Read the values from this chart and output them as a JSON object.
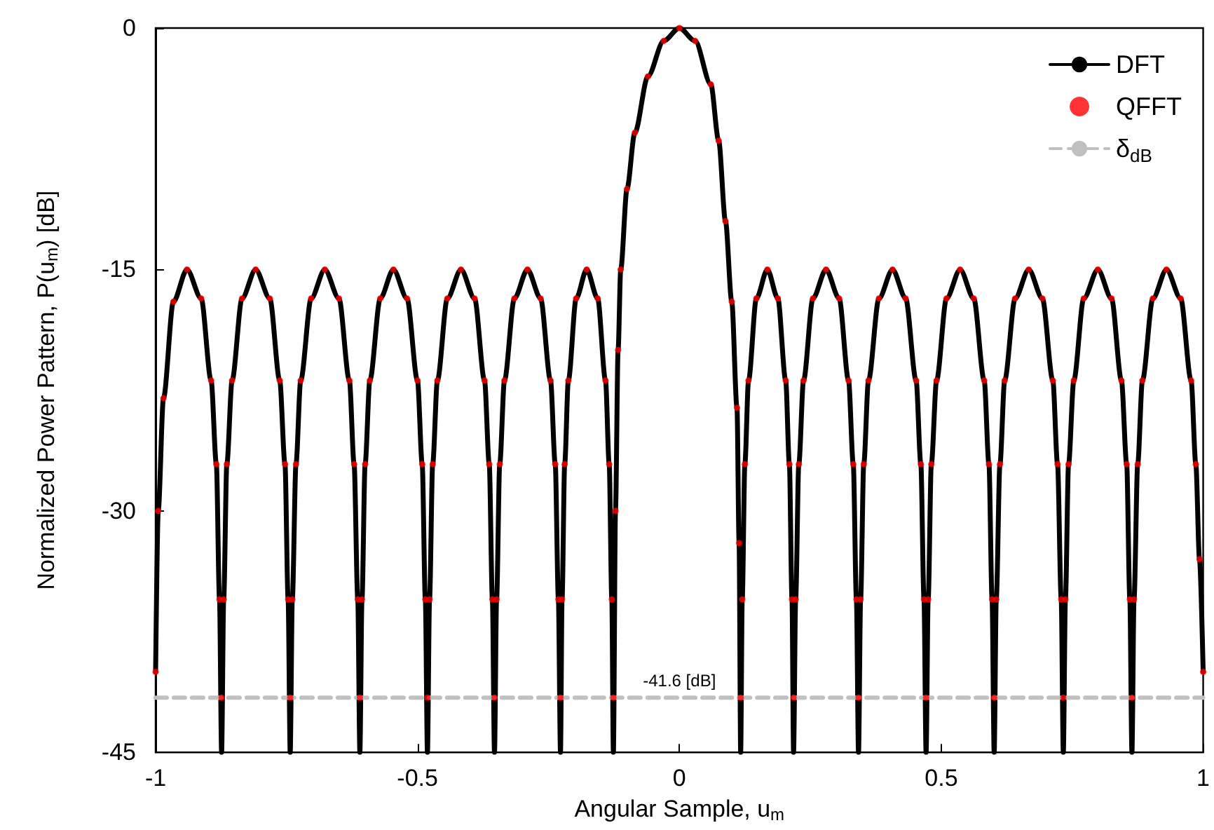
{
  "chart_data": {
    "type": "line",
    "xlabel": "Angular Sample, u$_{m}$",
    "ylabel": "Normalized Power Pattern, P(u$_{m}$) [dB]",
    "xlim": [
      -1,
      1
    ],
    "xticks": [
      -1,
      -0.5,
      0,
      0.5,
      1
    ],
    "ylim": [
      -45,
      0
    ],
    "yticks": [
      -45,
      -30,
      -15,
      0
    ],
    "grid": false,
    "legend": "top right",
    "annotations": [
      {
        "text": "-41.6 [dB]",
        "x": 0,
        "y": -41.6
      }
    ],
    "series": [
      {
        "name": "DFT",
        "color": "#000000",
        "marker": "none",
        "line_style": "solid",
        "x": [
          -1,
          -0.995,
          -0.985,
          -0.966,
          -0.94,
          -0.913,
          -0.894,
          -0.884,
          -0.878,
          -0.874,
          -0.87,
          -0.864,
          -0.854,
          -0.835,
          -0.809,
          -0.782,
          -0.763,
          -0.753,
          -0.747,
          -0.743,
          -0.739,
          -0.732,
          -0.723,
          -0.703,
          -0.677,
          -0.65,
          -0.63,
          -0.621,
          -0.614,
          -0.61,
          -0.606,
          -0.6,
          -0.591,
          -0.571,
          -0.546,
          -0.52,
          -0.5,
          -0.491,
          -0.485,
          -0.481,
          -0.477,
          -0.471,
          -0.462,
          -0.443,
          -0.417,
          -0.391,
          -0.372,
          -0.363,
          -0.357,
          -0.353,
          -0.349,
          -0.343,
          -0.334,
          -0.315,
          -0.29,
          -0.265,
          -0.246,
          -0.237,
          -0.231,
          -0.227,
          -0.224,
          -0.219,
          -0.212,
          -0.197,
          -0.177,
          -0.156,
          -0.141,
          -0.134,
          -0.129,
          -0.126,
          -0.122,
          -0.117,
          -0.112,
          -0.1,
          -0.085,
          -0.06,
          -0.03,
          0,
          0.03,
          0.06,
          0.075,
          0.088,
          0.1,
          0.11,
          0.114,
          0.117,
          0.12,
          0.125,
          0.132,
          0.147,
          0.168,
          0.188,
          0.203,
          0.21,
          0.215,
          0.218,
          0.222,
          0.228,
          0.237,
          0.255,
          0.28,
          0.305,
          0.323,
          0.332,
          0.338,
          0.342,
          0.346,
          0.352,
          0.361,
          0.381,
          0.407,
          0.432,
          0.452,
          0.461,
          0.467,
          0.471,
          0.475,
          0.481,
          0.491,
          0.51,
          0.536,
          0.562,
          0.582,
          0.591,
          0.597,
          0.601,
          0.605,
          0.612,
          0.621,
          0.641,
          0.667,
          0.693,
          0.713,
          0.722,
          0.729,
          0.733,
          0.737,
          0.743,
          0.753,
          0.772,
          0.799,
          0.825,
          0.844,
          0.854,
          0.86,
          0.864,
          0.868,
          0.875,
          0.884,
          0.904,
          0.93,
          0.957,
          0.977,
          0.986,
          0.993,
          1
        ],
        "values": [
          -40,
          -30,
          -23,
          -17,
          -15,
          -16.8,
          -21.9,
          -27.1,
          -35.5,
          -45,
          -35.5,
          -27.1,
          -21.9,
          -16.8,
          -15,
          -16.8,
          -21.9,
          -27.1,
          -35.5,
          -45,
          -35.5,
          -27.1,
          -21.9,
          -16.8,
          -15,
          -16.8,
          -21.9,
          -27.1,
          -35.5,
          -45,
          -35.5,
          -27.1,
          -21.9,
          -16.8,
          -15,
          -16.8,
          -21.9,
          -27.1,
          -35.5,
          -45,
          -35.5,
          -27.1,
          -21.9,
          -16.8,
          -15,
          -16.8,
          -21.9,
          -27.1,
          -35.5,
          -45,
          -35.5,
          -27.1,
          -21.9,
          -16.8,
          -15,
          -16.8,
          -21.9,
          -27.1,
          -35.5,
          -45,
          -35.5,
          -27.1,
          -21.9,
          -16.8,
          -15,
          -16.8,
          -21.9,
          -27.1,
          -35.5,
          -45,
          -30,
          -20,
          -15,
          -10,
          -6.5,
          -3,
          -0.8,
          0,
          -0.8,
          -3.5,
          -7,
          -12,
          -17,
          -23.6,
          -32,
          -45,
          -35.5,
          -27.1,
          -21.9,
          -16.8,
          -15,
          -16.8,
          -21.9,
          -27.1,
          -35.5,
          -45,
          -35.5,
          -27.1,
          -21.9,
          -16.8,
          -15,
          -16.8,
          -21.9,
          -27.1,
          -35.5,
          -45,
          -35.5,
          -27.1,
          -21.9,
          -16.8,
          -15,
          -16.8,
          -21.9,
          -27.1,
          -35.5,
          -45,
          -35.5,
          -27.1,
          -21.9,
          -16.8,
          -15,
          -16.8,
          -21.9,
          -27.1,
          -35.5,
          -45,
          -35.5,
          -27.1,
          -21.9,
          -16.8,
          -15,
          -16.8,
          -21.9,
          -27.1,
          -35.5,
          -45,
          -35.5,
          -27.1,
          -21.9,
          -16.8,
          -15,
          -16.8,
          -21.9,
          -27.1,
          -35.5,
          -45,
          -35.5,
          -27.1,
          -21.9,
          -16.8,
          -15,
          -16.8,
          -21.9,
          -27.1,
          -33,
          -40
        ]
      },
      {
        "name": "QFFT",
        "type": "scatter",
        "color": "#ff0000",
        "marker": "circle",
        "x": [
          -1,
          -0.995,
          -0.985,
          -0.966,
          -0.94,
          -0.913,
          -0.894,
          -0.884,
          -0.878,
          -0.874,
          -0.87,
          -0.864,
          -0.854,
          -0.835,
          -0.809,
          -0.782,
          -0.763,
          -0.753,
          -0.747,
          -0.743,
          -0.739,
          -0.732,
          -0.723,
          -0.703,
          -0.677,
          -0.65,
          -0.63,
          -0.621,
          -0.614,
          -0.61,
          -0.606,
          -0.6,
          -0.591,
          -0.571,
          -0.546,
          -0.52,
          -0.5,
          -0.491,
          -0.485,
          -0.481,
          -0.477,
          -0.471,
          -0.462,
          -0.443,
          -0.417,
          -0.391,
          -0.372,
          -0.363,
          -0.357,
          -0.353,
          -0.349,
          -0.343,
          -0.334,
          -0.315,
          -0.29,
          -0.265,
          -0.246,
          -0.237,
          -0.231,
          -0.227,
          -0.224,
          -0.219,
          -0.212,
          -0.197,
          -0.177,
          -0.156,
          -0.141,
          -0.134,
          -0.129,
          -0.126,
          -0.122,
          -0.117,
          -0.112,
          -0.1,
          -0.085,
          -0.06,
          -0.03,
          0,
          0.03,
          0.06,
          0.075,
          0.088,
          0.1,
          0.11,
          0.114,
          0.117,
          0.12,
          0.125,
          0.132,
          0.147,
          0.168,
          0.188,
          0.203,
          0.21,
          0.215,
          0.218,
          0.222,
          0.228,
          0.237,
          0.255,
          0.28,
          0.305,
          0.323,
          0.332,
          0.338,
          0.342,
          0.346,
          0.352,
          0.361,
          0.381,
          0.407,
          0.432,
          0.452,
          0.461,
          0.467,
          0.471,
          0.475,
          0.481,
          0.491,
          0.51,
          0.536,
          0.562,
          0.582,
          0.591,
          0.597,
          0.601,
          0.605,
          0.612,
          0.621,
          0.641,
          0.667,
          0.693,
          0.713,
          0.722,
          0.729,
          0.733,
          0.737,
          0.743,
          0.753,
          0.772,
          0.799,
          0.825,
          0.844,
          0.854,
          0.86,
          0.864,
          0.868,
          0.875,
          0.884,
          0.904,
          0.93,
          0.957,
          0.977,
          0.986,
          0.993,
          1
        ],
        "values": [
          -40,
          -30,
          -23,
          -17,
          -15,
          -16.8,
          -21.9,
          -27.1,
          -35.5,
          -41.6,
          -35.5,
          -27.1,
          -21.9,
          -16.8,
          -15,
          -16.8,
          -21.9,
          -27.1,
          -35.5,
          -41.6,
          -35.5,
          -27.1,
          -21.9,
          -16.8,
          -15,
          -16.8,
          -21.9,
          -27.1,
          -35.5,
          -41.6,
          -35.5,
          -27.1,
          -21.9,
          -16.8,
          -15,
          -16.8,
          -21.9,
          -27.1,
          -35.5,
          -41.6,
          -35.5,
          -27.1,
          -21.9,
          -16.8,
          -15,
          -16.8,
          -21.9,
          -27.1,
          -35.5,
          -41.6,
          -35.5,
          -27.1,
          -21.9,
          -16.8,
          -15,
          -16.8,
          -21.9,
          -27.1,
          -35.5,
          -41.6,
          -35.5,
          -27.1,
          -21.9,
          -16.8,
          -15,
          -16.8,
          -21.9,
          -27.1,
          -35.5,
          -41.6,
          -30,
          -20,
          -15,
          -10,
          -6.5,
          -3,
          -0.8,
          0,
          -0.8,
          -3.5,
          -7,
          -12,
          -17,
          -23.6,
          -32,
          -41.6,
          -35.5,
          -27.1,
          -21.9,
          -16.8,
          -15,
          -16.8,
          -21.9,
          -27.1,
          -35.5,
          -41.6,
          -35.5,
          -27.1,
          -21.9,
          -16.8,
          -15,
          -16.8,
          -21.9,
          -27.1,
          -35.5,
          -41.6,
          -35.5,
          -27.1,
          -21.9,
          -16.8,
          -15,
          -16.8,
          -21.9,
          -27.1,
          -35.5,
          -41.6,
          -35.5,
          -27.1,
          -21.9,
          -16.8,
          -15,
          -16.8,
          -21.9,
          -27.1,
          -35.5,
          -41.6,
          -35.5,
          -27.1,
          -21.9,
          -16.8,
          -15,
          -16.8,
          -21.9,
          -27.1,
          -35.5,
          -41.6,
          -35.5,
          -27.1,
          -21.9,
          -16.8,
          -15,
          -16.8,
          -21.9,
          -27.1,
          -35.5,
          -41.6,
          -35.5,
          -27.1,
          -21.9,
          -16.8,
          -15,
          -16.8,
          -21.9,
          -27.1,
          -33,
          -40
        ]
      },
      {
        "name": "δ$_{dB}$",
        "type": "line",
        "color": "#c0c0c0",
        "marker": "none",
        "line_style": "dashed",
        "x": [
          -1,
          1
        ],
        "values": [
          -41.6,
          -41.6
        ]
      }
    ]
  }
}
